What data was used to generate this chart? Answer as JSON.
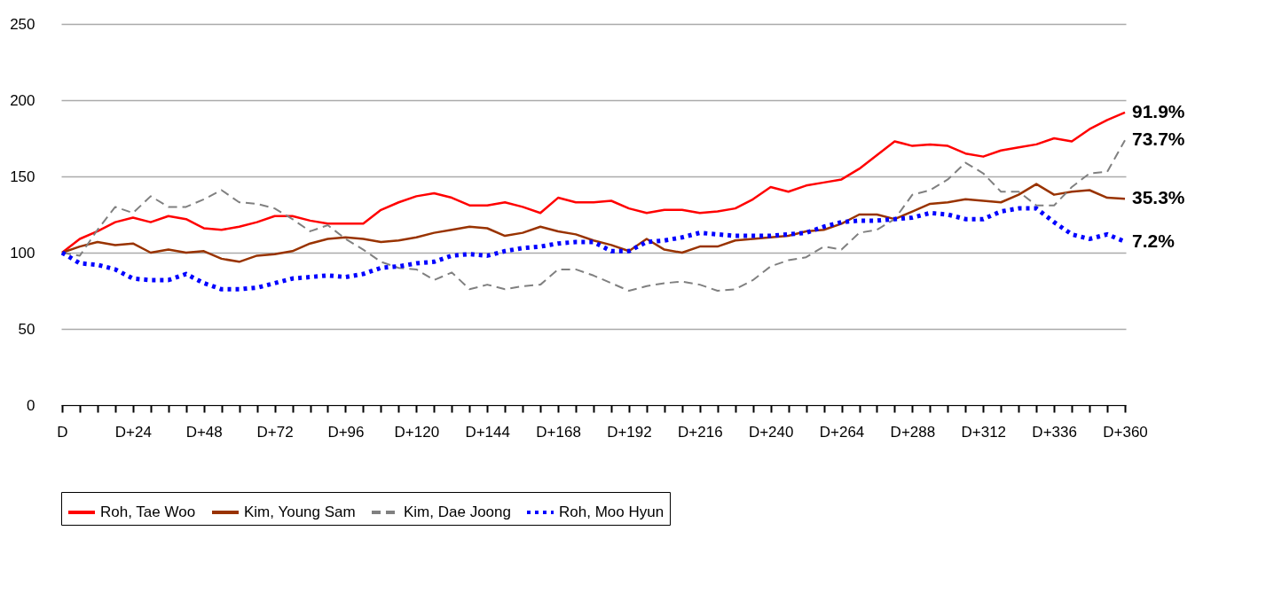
{
  "chart_data": {
    "type": "line",
    "categories": [
      "D",
      null,
      null,
      null,
      "D+24",
      null,
      null,
      null,
      "D+48",
      null,
      null,
      null,
      "D+72",
      null,
      null,
      null,
      "D+96",
      null,
      null,
      null,
      "D+120",
      null,
      null,
      null,
      "D+144",
      null,
      null,
      null,
      "D+168",
      null,
      null,
      null,
      "D+192",
      null,
      null,
      null,
      "D+216",
      null,
      null,
      null,
      "D+240",
      null,
      null,
      null,
      "D+264",
      null,
      null,
      null,
      "D+288",
      null,
      null,
      null,
      "D+312",
      null,
      null,
      null,
      "D+336",
      null,
      null,
      null,
      "D+360"
    ],
    "ylim": [
      0,
      250
    ],
    "yticks": [
      0,
      50,
      100,
      150,
      200,
      250
    ],
    "grid": "y",
    "legend": "bottom",
    "marker": "none",
    "series": [
      {
        "name": "Roh, Tae Woo",
        "color": "#ff0000",
        "line_style": "solid",
        "values": [
          100,
          109,
          114,
          120,
          123,
          120,
          124,
          122,
          116,
          115,
          117,
          120,
          124,
          124,
          121,
          119,
          119,
          119,
          128,
          133,
          137,
          139,
          136,
          131,
          131,
          133,
          130,
          126,
          136,
          133,
          133,
          134,
          129,
          126,
          128,
          128,
          126,
          127,
          129,
          135,
          143,
          140,
          144,
          146,
          148,
          155,
          164,
          173,
          170,
          171,
          170,
          165,
          163,
          167,
          169,
          171,
          175,
          173,
          181,
          187,
          191.9
        ]
      },
      {
        "name": "Kim, Young Sam",
        "color": "#993300",
        "line_style": "solid",
        "values": [
          100,
          104,
          107,
          105,
          106,
          100,
          102,
          100,
          101,
          96,
          94,
          98,
          99,
          101,
          106,
          109,
          110,
          109,
          107,
          108,
          110,
          113,
          115,
          117,
          116,
          111,
          113,
          117,
          114,
          112,
          108,
          105,
          101,
          109,
          102,
          100,
          104,
          104,
          108,
          109,
          110,
          111,
          114,
          115,
          119,
          125,
          125,
          122,
          127,
          132,
          133,
          135,
          134,
          133,
          138,
          145,
          138,
          140,
          141,
          136,
          135.3
        ]
      },
      {
        "name": "Kim, Dae Joong",
        "color": "#808080",
        "line_style": "dashed",
        "values": [
          100,
          98,
          115,
          130,
          126,
          137,
          130,
          130,
          135,
          141,
          133,
          132,
          129,
          122,
          114,
          118,
          109,
          102,
          94,
          90,
          89,
          82,
          87,
          76,
          79,
          76,
          78,
          79,
          89,
          89,
          85,
          80,
          75,
          78,
          80,
          81,
          79,
          75,
          76,
          82,
          91,
          95,
          97,
          104,
          102,
          113,
          115,
          122,
          138,
          141,
          148,
          159,
          152,
          140,
          140,
          131,
          131,
          143,
          152,
          153,
          173.7
        ]
      },
      {
        "name": "Roh, Moo Hyun",
        "color": "#0000ff",
        "line_style": "dotted",
        "values": [
          100,
          93,
          92,
          89,
          83,
          82,
          82,
          86,
          80,
          76,
          76,
          77,
          80,
          83,
          84,
          85,
          84,
          86,
          90,
          91,
          93,
          94,
          98,
          99,
          98,
          101,
          103,
          104,
          106,
          107,
          107,
          101,
          101,
          107,
          108,
          110,
          113,
          112,
          111,
          111,
          111,
          112,
          113,
          117,
          120,
          121,
          121,
          122,
          123,
          126,
          125,
          122,
          122,
          127,
          129,
          129,
          120,
          112,
          109,
          112,
          107.2
        ]
      }
    ],
    "annotations": [
      {
        "text": "91.9%",
        "x": "D+360",
        "y": 191.9
      },
      {
        "text": "73.7%",
        "x": "D+360",
        "y": 173.7
      },
      {
        "text": "35.3%",
        "x": "D+360",
        "y": 135.3
      },
      {
        "text": "7.2%",
        "x": "D+360",
        "y": 107.2
      }
    ]
  }
}
